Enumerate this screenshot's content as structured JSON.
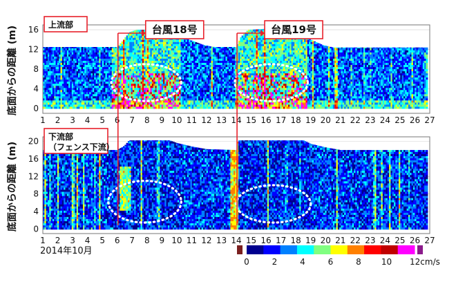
{
  "chart_data": {
    "type": "heatmap",
    "period_label": "2014年10月",
    "x_ticks": [
      1,
      2,
      3,
      4,
      5,
      6,
      7,
      8,
      9,
      10,
      11,
      12,
      13,
      14,
      15,
      16,
      17,
      18,
      19,
      20,
      21,
      22,
      23,
      24,
      25,
      26,
      27
    ],
    "xlim": [
      1,
      27
    ],
    "typhoons": [
      {
        "label": "台風18号",
        "day": 6.05
      },
      {
        "label": "台風19号",
        "day": 14.05
      }
    ],
    "panels": [
      {
        "label_lines": [
          "上流部"
        ],
        "ylabel": "底面からの距離 (m)",
        "ylim": [
          -1,
          17
        ],
        "y_ticks": [
          0,
          4,
          8,
          12,
          16
        ],
        "surface_profile": [
          [
            1,
            12.5
          ],
          [
            6,
            12.5
          ],
          [
            6.3,
            13.5
          ],
          [
            6.8,
            15.5
          ],
          [
            7.3,
            16
          ],
          [
            8,
            16
          ],
          [
            9,
            15.6
          ],
          [
            10,
            14.8
          ],
          [
            11,
            13.8
          ],
          [
            11.8,
            12.9
          ],
          [
            12.5,
            12.5
          ],
          [
            14,
            12.5
          ],
          [
            14.3,
            14.5
          ],
          [
            14.8,
            16
          ],
          [
            16,
            16.2
          ],
          [
            17,
            16
          ],
          [
            18,
            15.2
          ],
          [
            19,
            14
          ],
          [
            19.8,
            12.9
          ],
          [
            20.5,
            12.4
          ],
          [
            27,
            12.4
          ]
        ],
        "highlights": [
          {
            "day_range": [
              5.6,
              10.3
            ],
            "height_range": [
              1.5,
              9
            ]
          },
          {
            "day_range": [
              13.9,
              18.8
            ],
            "height_range": [
              1.5,
              9
            ]
          }
        ]
      },
      {
        "label_lines": [
          "下流部",
          "（フェンス下流）"
        ],
        "ylabel": "底面からの距離 (m)",
        "ylim": [
          -1,
          21
        ],
        "y_ticks": [
          0,
          4,
          8,
          12,
          16,
          20
        ],
        "surface_profile": [
          [
            1,
            18
          ],
          [
            6,
            18
          ],
          [
            6.5,
            19
          ],
          [
            6.8,
            20.2
          ],
          [
            9.5,
            20.2
          ],
          [
            10,
            19.6
          ],
          [
            11,
            18.8
          ],
          [
            12,
            18.2
          ],
          [
            14,
            18
          ],
          [
            14.1,
            20.2
          ],
          [
            18.5,
            20.2
          ],
          [
            19,
            19.4
          ],
          [
            20,
            18.6
          ],
          [
            21,
            18
          ],
          [
            27,
            18
          ]
        ],
        "highlights": [
          {
            "day_range": [
              5.4,
              10.3
            ],
            "height_range": [
              1.5,
              11
            ]
          },
          {
            "day_range": [
              14,
              19
            ],
            "height_range": [
              1.5,
              10
            ]
          }
        ]
      }
    ],
    "colorbar": {
      "unit": "cm/s",
      "ticks": [
        0,
        2,
        4,
        6,
        8,
        10,
        12
      ],
      "range": [
        0,
        12
      ],
      "colors": [
        "#00008f",
        "#0000ff",
        "#0080ff",
        "#00ffff",
        "#80ff80",
        "#ffff00",
        "#ff8000",
        "#ff0000",
        "#c00000",
        "#ff00ff"
      ],
      "under_color": "#7a1f1f",
      "over_color": "#8b1a8b"
    },
    "annotation_colors": {
      "typhoon_line": "#e8202a",
      "highlight": "#ffffff",
      "grid": "#d0d0d0"
    }
  }
}
